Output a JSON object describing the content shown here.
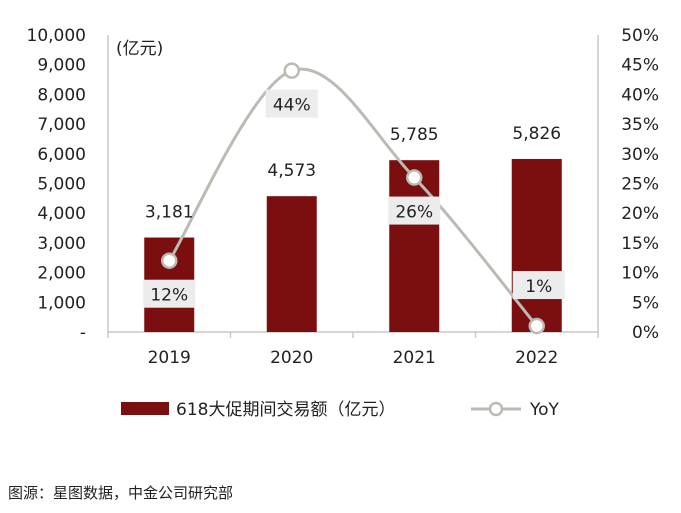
{
  "chart_data": {
    "type": "bar",
    "categories": [
      "2019",
      "2020",
      "2021",
      "2022"
    ],
    "series": [
      {
        "name": "618大促期间交易额（亿元）",
        "type": "bar",
        "axis": "left",
        "values": [
          3181,
          4573,
          5785,
          5826
        ],
        "labels": [
          "3,181",
          "4,573",
          "5,785",
          "5,826"
        ]
      },
      {
        "name": "YoY",
        "type": "line",
        "axis": "right",
        "values": [
          12,
          44,
          26,
          1
        ],
        "labels": [
          "12%",
          "44%",
          "26%",
          "1%"
        ]
      }
    ],
    "y_left": {
      "unit": "(亿元)",
      "min": 0,
      "max": 10000,
      "ticks": [
        "-",
        "1,000",
        "2,000",
        "3,000",
        "4,000",
        "5,000",
        "6,000",
        "7,000",
        "8,000",
        "9,000",
        "10,000"
      ]
    },
    "y_right": {
      "min": 0,
      "max": 50,
      "ticks": [
        "0%",
        "5%",
        "10%",
        "15%",
        "20%",
        "25%",
        "30%",
        "35%",
        "40%",
        "45%",
        "50%"
      ]
    },
    "colors": {
      "bar": "#7b0f10",
      "line": "#bdbab4",
      "label_box": "#ececec"
    },
    "legend_position": "bottom"
  },
  "source": "图源：星图数据，中金公司研究部"
}
